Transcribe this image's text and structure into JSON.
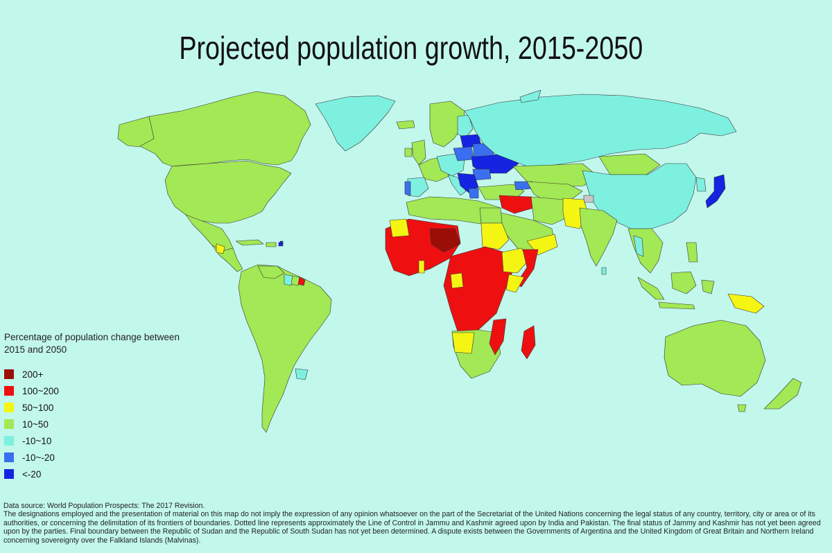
{
  "title": "Projected population growth, 2015-2050",
  "legend": {
    "title": "Percentage of population change between 2015 and 2050",
    "items": [
      {
        "label": "200+",
        "color": "#9b0e08"
      },
      {
        "label": "100~200",
        "color": "#ee1010"
      },
      {
        "label": "50~100",
        "color": "#f5f514"
      },
      {
        "label": "10~50",
        "color": "#a3e855"
      },
      {
        "label": "-10~10",
        "color": "#7ef0e0"
      },
      {
        "label": "-10~-20",
        "color": "#3a6ff0"
      },
      {
        "label": "<-20",
        "color": "#1424e0"
      }
    ]
  },
  "colors": {
    "ocean": "#c2f7ec",
    "no_data": "#c8c8c8",
    "border": "#333333"
  },
  "footer": {
    "source": "Data source: World Population Prospects: The 2017 Revision.",
    "disclaimer": "The designations employed and the presentation of material on this map do not imply the expression of any opinion whatsoever on the part of the Secretariat of the United Nations concerning the legal status of any country, territory, city or area or of its authorities, or concerning the delimitation of its frontiers of boundaries. Dotted line represents approximately the Line of Control in Jammu and Kashmir agreed upon by India and Pakistan. The final status of Jammy and Kashmir has not yet been agreed upon by the parties. Final boundary between the Republic of Sudan and the Republic of South Sudan has not yet been determined. A dispute exists between the Governments of Argentina and the United Kingdom of Great Britain and Northern Ireland concerning sovereignty over the Falkland Islands (Malvinas)."
  }
}
